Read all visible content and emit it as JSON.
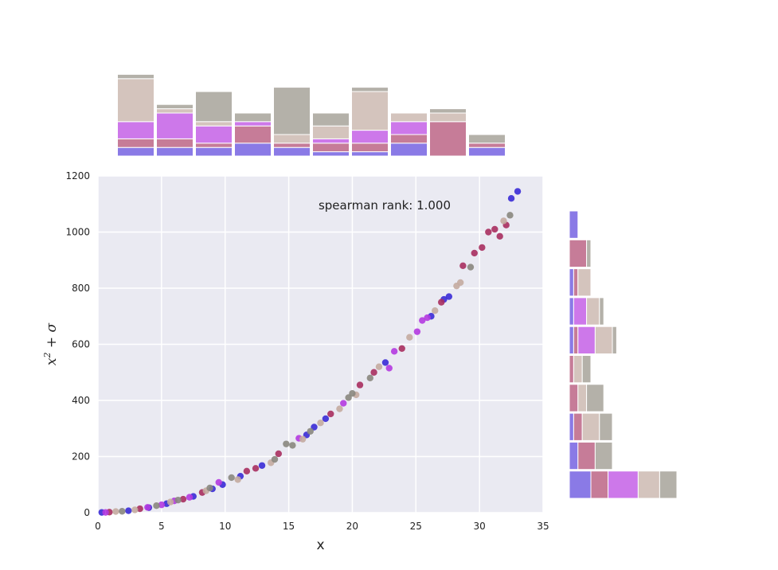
{
  "chart_data": {
    "type": "scatter",
    "title": "",
    "xlabel": "x",
    "ylabel_base": "x",
    "ylabel_sup": "2",
    "ylabel_rest": " + σ",
    "annotation": "spearman rank: 1.000",
    "xlim": [
      0,
      35
    ],
    "ylim": [
      0,
      1200
    ],
    "xticks": [
      "0",
      "5",
      "10",
      "15",
      "20",
      "25",
      "30",
      "35"
    ],
    "yticks": [
      "0",
      "200",
      "400",
      "600",
      "800",
      "1000",
      "1200"
    ],
    "grid": true,
    "colors": {
      "background": "#eaeaf2",
      "grid": "#ffffff",
      "palette": [
        "#3a2bd6",
        "#a82f5f",
        "#b43ae0",
        "#c4aba0",
        "#8a877e"
      ],
      "hist_palette": [
        "#8a7ae6",
        "#c67c98",
        "#cd78ea",
        "#d4c4bd",
        "#b4b1a9"
      ]
    },
    "series": [
      {
        "color": "#3a2bd6",
        "points": [
          [
            0.3,
            1
          ],
          [
            2.4,
            7
          ],
          [
            4.0,
            18
          ],
          [
            5.4,
            32
          ],
          [
            7.5,
            58
          ],
          [
            9.0,
            85
          ],
          [
            9.8,
            100
          ],
          [
            11.2,
            130
          ],
          [
            12.9,
            168
          ],
          [
            16.4,
            277
          ],
          [
            17.0,
            305
          ],
          [
            17.9,
            335
          ],
          [
            22.6,
            535
          ],
          [
            26.2,
            700
          ],
          [
            27.2,
            760
          ],
          [
            27.6,
            770
          ],
          [
            32.5,
            1120
          ],
          [
            33.0,
            1145
          ]
        ]
      },
      {
        "color": "#a82f5f",
        "points": [
          [
            0.9,
            2
          ],
          [
            3.3,
            14
          ],
          [
            6.7,
            48
          ],
          [
            8.2,
            72
          ],
          [
            11.7,
            148
          ],
          [
            12.4,
            158
          ],
          [
            14.2,
            210
          ],
          [
            18.3,
            352
          ],
          [
            20.6,
            455
          ],
          [
            21.7,
            500
          ],
          [
            23.9,
            585
          ],
          [
            27.0,
            750
          ],
          [
            28.7,
            880
          ],
          [
            29.6,
            925
          ],
          [
            30.2,
            945
          ],
          [
            30.7,
            1000
          ],
          [
            31.2,
            1010
          ],
          [
            31.6,
            985
          ],
          [
            32.1,
            1025
          ]
        ]
      },
      {
        "color": "#b43ae0",
        "points": [
          [
            0.6,
            1
          ],
          [
            3.9,
            19
          ],
          [
            5.0,
            28
          ],
          [
            6.0,
            42
          ],
          [
            7.2,
            55
          ],
          [
            9.5,
            108
          ],
          [
            15.8,
            265
          ],
          [
            19.3,
            390
          ],
          [
            22.9,
            515
          ],
          [
            23.3,
            575
          ],
          [
            25.1,
            645
          ],
          [
            25.5,
            685
          ],
          [
            25.9,
            695
          ]
        ]
      },
      {
        "color": "#c4aba0",
        "points": [
          [
            1.4,
            4
          ],
          [
            2.9,
            10
          ],
          [
            5.7,
            38
          ],
          [
            8.5,
            78
          ],
          [
            11.0,
            118
          ],
          [
            13.6,
            178
          ],
          [
            16.1,
            262
          ],
          [
            17.5,
            320
          ],
          [
            19.0,
            370
          ],
          [
            20.3,
            420
          ],
          [
            22.1,
            520
          ],
          [
            24.5,
            625
          ],
          [
            26.5,
            720
          ],
          [
            28.2,
            808
          ],
          [
            28.5,
            820
          ],
          [
            31.9,
            1040
          ]
        ]
      },
      {
        "color": "#8a877e",
        "points": [
          [
            1.9,
            5
          ],
          [
            4.6,
            25
          ],
          [
            6.3,
            45
          ],
          [
            8.8,
            88
          ],
          [
            10.5,
            125
          ],
          [
            13.9,
            190
          ],
          [
            14.8,
            245
          ],
          [
            15.3,
            240
          ],
          [
            16.7,
            290
          ],
          [
            19.7,
            410
          ],
          [
            20.0,
            425
          ],
          [
            21.4,
            480
          ],
          [
            29.3,
            875
          ],
          [
            32.4,
            1060
          ]
        ]
      }
    ],
    "top_hist": {
      "bins": 10,
      "stacks": [
        [
          2,
          2,
          4,
          10,
          1
        ],
        [
          2,
          2,
          6,
          1,
          1
        ],
        [
          2,
          1,
          4,
          1,
          7
        ],
        [
          3,
          4,
          1,
          0,
          2
        ],
        [
          2,
          1,
          0,
          2,
          11
        ],
        [
          1,
          2,
          1,
          3,
          3
        ],
        [
          1,
          2,
          3,
          9,
          1
        ],
        [
          3,
          2,
          3,
          2,
          0
        ],
        [
          0,
          8,
          0,
          2,
          1
        ],
        [
          2,
          1,
          0,
          0,
          2
        ]
      ]
    },
    "right_hist": {
      "bins": 10,
      "stacks_bottom_to_top": [
        [
          5,
          4,
          7,
          5,
          4
        ],
        [
          2,
          4,
          0,
          0,
          4
        ],
        [
          1,
          2,
          0,
          4,
          3
        ],
        [
          0,
          2,
          0,
          2,
          4
        ],
        [
          0,
          1,
          0,
          2,
          2
        ],
        [
          1,
          1,
          4,
          4,
          1
        ],
        [
          1,
          0,
          3,
          3,
          1
        ],
        [
          1,
          1,
          0,
          3,
          0
        ],
        [
          0,
          4,
          0,
          0,
          1
        ],
        [
          2,
          0,
          0,
          0,
          0
        ]
      ]
    }
  }
}
